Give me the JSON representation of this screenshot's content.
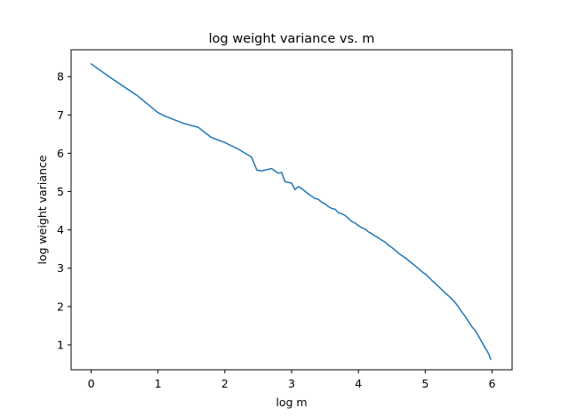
{
  "chart_data": {
    "type": "line",
    "title": "log weight variance vs. m",
    "xlabel": "log m",
    "ylabel": "log weight variance",
    "xlim": [
      -0.3,
      6.3
    ],
    "ylim": [
      0.35,
      8.7
    ],
    "xticks": [
      0,
      1,
      2,
      3,
      4,
      5,
      6
    ],
    "yticks": [
      1,
      2,
      3,
      4,
      5,
      6,
      7,
      8
    ],
    "grid": false,
    "series": [
      {
        "color": "#1f77b4",
        "x": [
          0.0,
          0.3,
          0.7,
          1.0,
          1.1,
          1.4,
          1.6,
          1.8,
          2.0,
          2.2,
          2.4,
          2.48,
          2.55,
          2.7,
          2.8,
          2.85,
          2.9,
          3.0,
          3.05,
          3.1,
          3.15,
          3.25,
          3.3,
          3.35,
          3.4,
          3.45,
          3.5,
          3.55,
          3.6,
          3.65,
          3.7,
          3.75,
          3.8,
          3.85,
          3.9,
          3.95,
          4.0,
          4.05,
          4.1,
          4.15,
          4.2,
          4.25,
          4.3,
          4.35,
          4.4,
          4.45,
          4.5,
          4.55,
          4.6,
          4.65,
          4.7,
          4.75,
          4.8,
          4.85,
          4.9,
          4.95,
          5.0,
          5.05,
          5.1,
          5.15,
          5.2,
          5.25,
          5.3,
          5.35,
          5.4,
          5.45,
          5.5,
          5.55,
          5.6,
          5.65,
          5.7,
          5.75,
          5.8,
          5.85,
          5.9,
          5.93,
          5.96,
          5.98
        ],
        "y": [
          8.33,
          7.96,
          7.49,
          7.06,
          6.97,
          6.77,
          6.68,
          6.41,
          6.28,
          6.11,
          5.9,
          5.56,
          5.54,
          5.6,
          5.48,
          5.5,
          5.26,
          5.22,
          5.05,
          5.13,
          5.08,
          4.94,
          4.88,
          4.82,
          4.8,
          4.72,
          4.68,
          4.61,
          4.56,
          4.54,
          4.45,
          4.42,
          4.38,
          4.3,
          4.22,
          4.18,
          4.11,
          4.06,
          4.02,
          3.95,
          3.9,
          3.84,
          3.79,
          3.73,
          3.68,
          3.6,
          3.54,
          3.47,
          3.39,
          3.33,
          3.27,
          3.2,
          3.13,
          3.06,
          2.99,
          2.91,
          2.85,
          2.77,
          2.68,
          2.6,
          2.52,
          2.44,
          2.35,
          2.28,
          2.19,
          2.1,
          1.98,
          1.85,
          1.74,
          1.6,
          1.47,
          1.37,
          1.22,
          1.07,
          0.91,
          0.83,
          0.72,
          0.62
        ]
      }
    ]
  }
}
